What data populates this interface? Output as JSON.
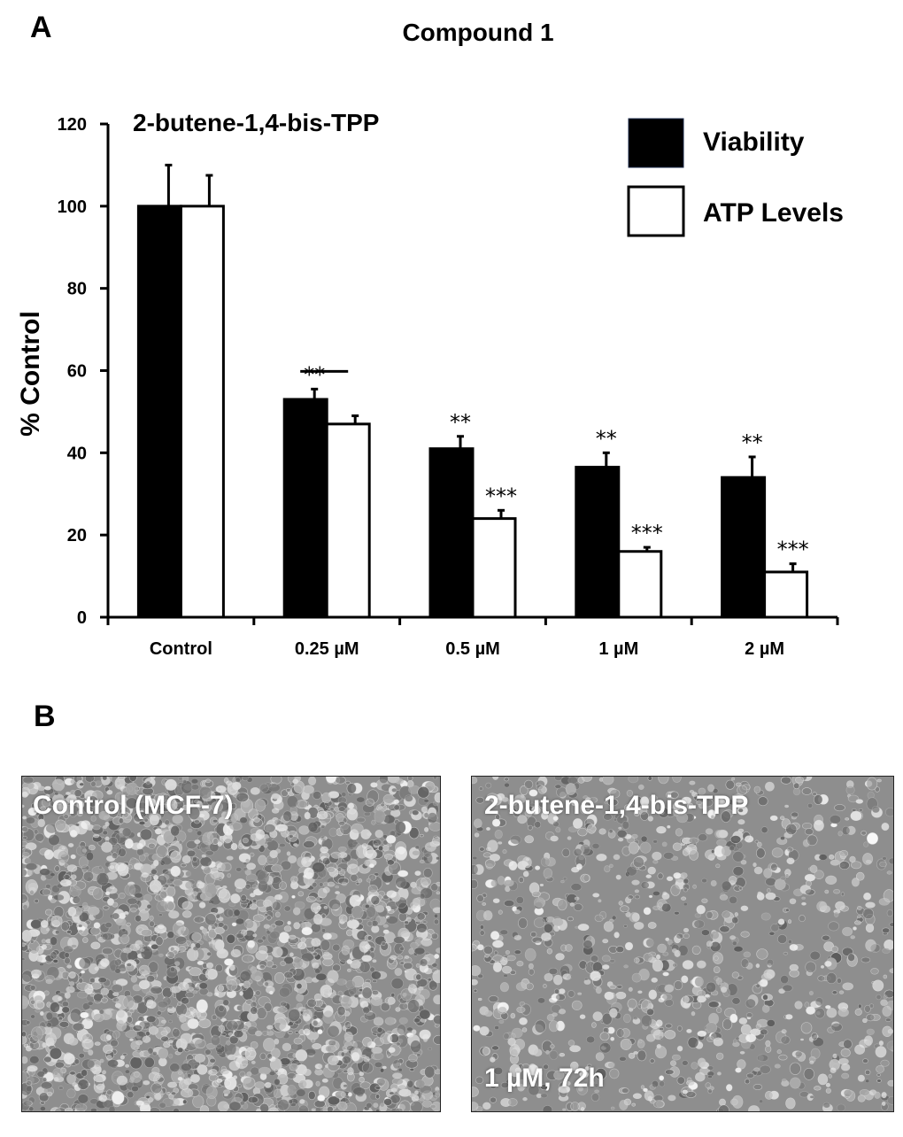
{
  "figure": {
    "panel_a_letter": "A",
    "panel_b_letter": "B"
  },
  "chart_data": {
    "type": "bar",
    "title": "Compound 1",
    "subtitle": "2-butene-1,4-bis-TPP",
    "xlabel": "",
    "ylabel": "% Control",
    "ylim": [
      0,
      120
    ],
    "yticks": [
      0,
      20,
      40,
      60,
      80,
      100,
      120
    ],
    "grid": false,
    "legend_position": "top-right",
    "categories": [
      "Control",
      "0.25 µM",
      "0.5  µM",
      "1  µM",
      "2  µM"
    ],
    "series": [
      {
        "name": "Viability",
        "color": "#000000",
        "values": [
          100,
          53,
          41,
          36.5,
          34
        ],
        "errors": [
          10,
          2.5,
          3,
          3.5,
          5
        ],
        "significance": [
          "",
          "**",
          "**",
          "**",
          "**"
        ]
      },
      {
        "name": "ATP Levels",
        "color": "#ffffff",
        "values": [
          100,
          47,
          24,
          16,
          11
        ],
        "errors": [
          7.5,
          2,
          2,
          1,
          2
        ],
        "significance": [
          "",
          "",
          "***",
          "***",
          "***"
        ]
      }
    ]
  },
  "images": {
    "left": {
      "label": "Control (MCF-7)"
    },
    "right": {
      "label": "2-butene-1,4-bis-TPP",
      "sublabel": "1 µM, 72h"
    }
  }
}
